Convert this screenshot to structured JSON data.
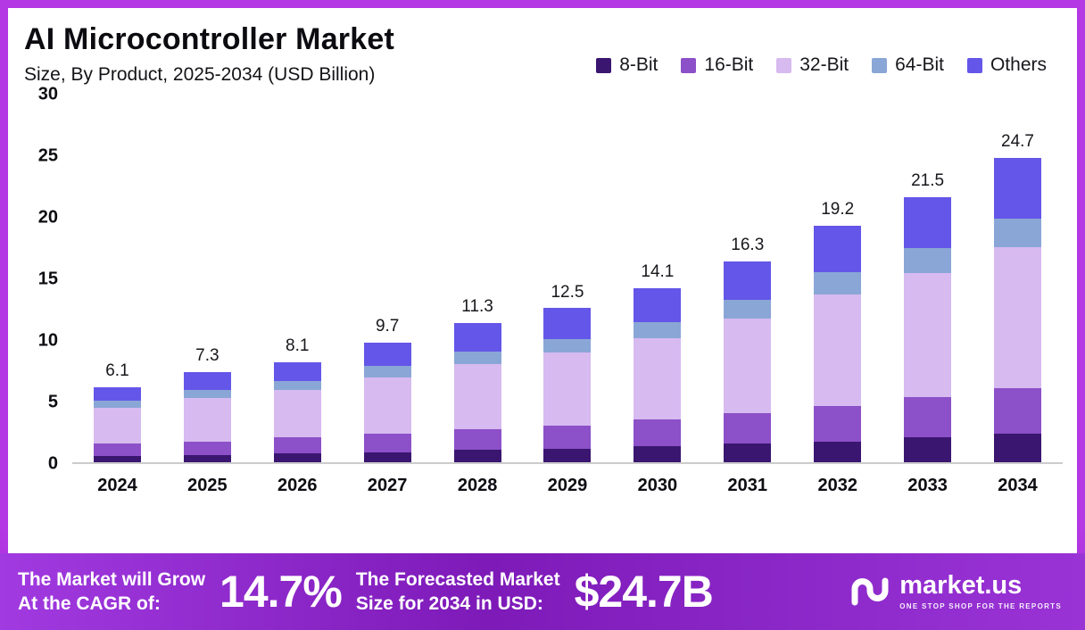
{
  "header": {
    "title": "AI Microcontroller Market",
    "subtitle": "Size, By Product, 2025-2034 (USD Billion)"
  },
  "legend": [
    {
      "label": "8-Bit",
      "color": "#3a1670"
    },
    {
      "label": "16-Bit",
      "color": "#8c50c8"
    },
    {
      "label": "32-Bit",
      "color": "#d7baf0"
    },
    {
      "label": "64-Bit",
      "color": "#8aa6d6"
    },
    {
      "label": "Others",
      "color": "#6456e8"
    }
  ],
  "chart_data": {
    "type": "bar",
    "stacked": true,
    "title": "AI Microcontroller Market Size, By Product, 2025-2034 (USD Billion)",
    "xlabel": "",
    "ylabel": "USD Billion",
    "ylim": [
      0,
      30
    ],
    "yticks": [
      0,
      5,
      10,
      15,
      20,
      25,
      30
    ],
    "grid": false,
    "legend_position": "top-right",
    "categories": [
      "2024",
      "2025",
      "2026",
      "2027",
      "2028",
      "2029",
      "2030",
      "2031",
      "2032",
      "2033",
      "2034"
    ],
    "totals": [
      "6.1",
      "7.3",
      "8.1",
      "9.7",
      "11.3",
      "12.5",
      "14.1",
      "16.3",
      "19.2",
      "21.5",
      "24.7"
    ],
    "series": [
      {
        "name": "8-Bit",
        "color": "#3a1670",
        "values": [
          0.5,
          0.6,
          0.7,
          0.8,
          1.0,
          1.1,
          1.3,
          1.5,
          1.7,
          2.0,
          2.3
        ]
      },
      {
        "name": "16-Bit",
        "color": "#8c50c8",
        "values": [
          1.0,
          1.1,
          1.3,
          1.5,
          1.7,
          1.9,
          2.2,
          2.5,
          2.9,
          3.3,
          3.7
        ]
      },
      {
        "name": "32-Bit",
        "color": "#d7baf0",
        "values": [
          2.9,
          3.5,
          3.9,
          4.6,
          5.3,
          5.9,
          6.6,
          7.7,
          9.0,
          10.1,
          11.5
        ]
      },
      {
        "name": "64-Bit",
        "color": "#8aa6d6",
        "values": [
          0.6,
          0.7,
          0.7,
          0.9,
          1.0,
          1.1,
          1.3,
          1.5,
          1.8,
          2.0,
          2.3
        ]
      },
      {
        "name": "Others",
        "color": "#6456e8",
        "values": [
          1.1,
          1.4,
          1.5,
          1.9,
          2.3,
          2.5,
          2.7,
          3.1,
          3.8,
          4.1,
          4.9
        ]
      }
    ]
  },
  "footer": {
    "cagr_line1": "The Market will Grow",
    "cagr_line2": "At the CAGR of:",
    "cagr_value": "14.7%",
    "forecast_line1": "The Forecasted Market",
    "forecast_line2": "Size for 2034 in USD:",
    "forecast_value": "$24.7B",
    "brand": "market.us",
    "tagline": "ONE STOP SHOP FOR THE REPORTS"
  }
}
